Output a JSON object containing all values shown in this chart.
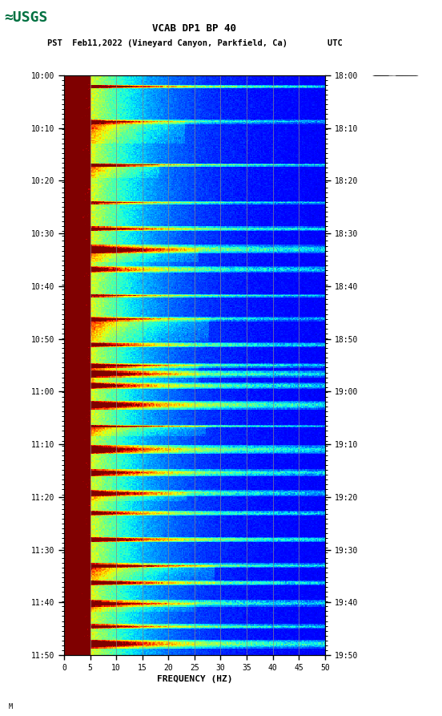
{
  "title_line1": "VCAB DP1 BP 40",
  "title_line2": "PST  Feb11,2022 (Vineyard Canyon, Parkfield, Ca)        UTC",
  "xlabel": "FREQUENCY (HZ)",
  "freq_min": 0,
  "freq_max": 50,
  "freq_ticks": [
    0,
    5,
    10,
    15,
    20,
    25,
    30,
    35,
    40,
    45,
    50
  ],
  "time_left_labels": [
    "10:00",
    "10:10",
    "10:20",
    "10:30",
    "10:40",
    "10:50",
    "11:00",
    "11:10",
    "11:20",
    "11:30",
    "11:40",
    "11:50"
  ],
  "time_right_labels": [
    "18:00",
    "18:10",
    "18:20",
    "18:30",
    "18:40",
    "18:50",
    "19:00",
    "19:10",
    "19:20",
    "19:30",
    "19:40",
    "19:50"
  ],
  "n_time_steps": 600,
  "n_freq_steps": 250,
  "background_color": "#ffffff",
  "colormap": "jet",
  "vertical_lines_freq": [
    5,
    10,
    15,
    20,
    25,
    30,
    35,
    40,
    45
  ],
  "waveform_color": "#000000",
  "fig_width": 5.52,
  "fig_height": 8.93,
  "fig_dpi": 100
}
